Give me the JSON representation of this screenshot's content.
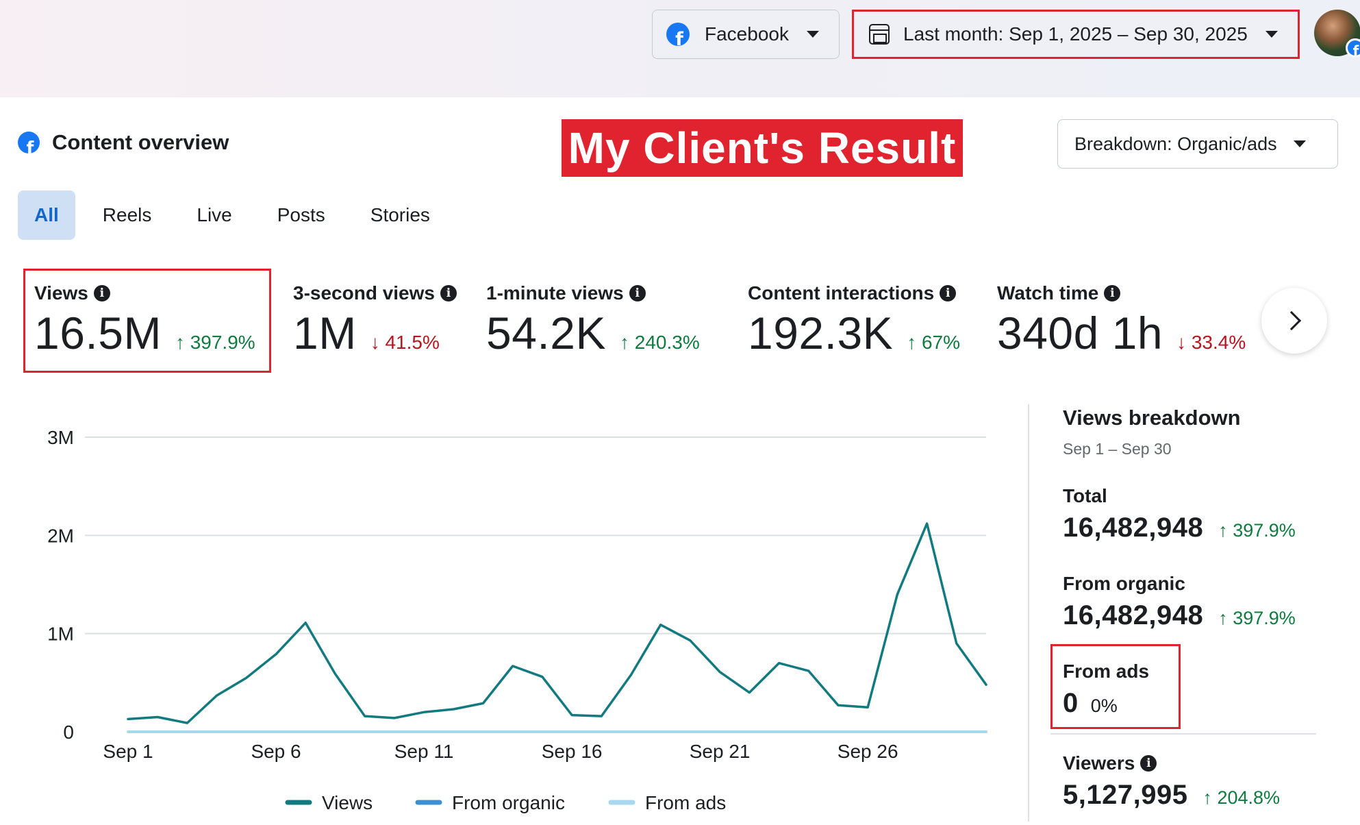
{
  "topbar": {
    "platform_label": "Facebook",
    "date_range_label": "Last month: Sep 1, 2025 – Sep 30, 2025"
  },
  "header": {
    "section_title": "Content overview",
    "banner_text": "My Client's Result",
    "breakdown_label": "Breakdown: Organic/ads"
  },
  "tabs": [
    {
      "label": "All",
      "active": true
    },
    {
      "label": "Reels",
      "active": false
    },
    {
      "label": "Live",
      "active": false
    },
    {
      "label": "Posts",
      "active": false
    },
    {
      "label": "Stories",
      "active": false
    }
  ],
  "metrics": [
    {
      "label": "Views",
      "value": "16.5M",
      "change": "397.9%",
      "direction": "up"
    },
    {
      "label": "3-second views",
      "value": "1M",
      "change": "41.5%",
      "direction": "down"
    },
    {
      "label": "1-minute views",
      "value": "54.2K",
      "change": "240.3%",
      "direction": "up"
    },
    {
      "label": "Content interactions",
      "value": "192.3K",
      "change": "67%",
      "direction": "up"
    },
    {
      "label": "Watch time",
      "value": "340d 1h",
      "change": "33.4%",
      "direction": "down"
    }
  ],
  "colors": {
    "up": "#0f7b3f",
    "down": "#b8151e",
    "views_line": "#137a7f",
    "organic_line": "#3d8fd1",
    "ads_line": "#a8d8f0",
    "highlight": "#e0232e",
    "facebook_blue": "#1877f2"
  },
  "chart_data": {
    "type": "line",
    "x": [
      "Sep 1",
      "Sep 2",
      "Sep 3",
      "Sep 4",
      "Sep 5",
      "Sep 6",
      "Sep 7",
      "Sep 8",
      "Sep 9",
      "Sep 10",
      "Sep 11",
      "Sep 12",
      "Sep 13",
      "Sep 14",
      "Sep 15",
      "Sep 16",
      "Sep 17",
      "Sep 18",
      "Sep 19",
      "Sep 20",
      "Sep 21",
      "Sep 22",
      "Sep 23",
      "Sep 24",
      "Sep 25",
      "Sep 26",
      "Sep 27",
      "Sep 28",
      "Sep 29",
      "Sep 30"
    ],
    "x_tick_labels": [
      "Sep 1",
      "Sep 6",
      "Sep 11",
      "Sep 16",
      "Sep 21",
      "Sep 26"
    ],
    "y_tick_labels": [
      "0",
      "1M",
      "2M",
      "3M"
    ],
    "ylim": [
      0,
      3000000
    ],
    "grid": true,
    "legend_position": "bottom",
    "series": [
      {
        "name": "Views",
        "values": [
          130000,
          150000,
          90000,
          370000,
          550000,
          790000,
          1110000,
          590000,
          160000,
          140000,
          200000,
          230000,
          290000,
          670000,
          560000,
          170000,
          160000,
          580000,
          1090000,
          930000,
          610000,
          400000,
          700000,
          620000,
          270000,
          250000,
          1400000,
          2120000,
          900000,
          480000
        ]
      },
      {
        "name": "From organic",
        "values": [
          130000,
          150000,
          90000,
          370000,
          550000,
          790000,
          1110000,
          590000,
          160000,
          140000,
          200000,
          230000,
          290000,
          670000,
          560000,
          170000,
          160000,
          580000,
          1090000,
          930000,
          610000,
          400000,
          700000,
          620000,
          270000,
          250000,
          1400000,
          2120000,
          900000,
          480000
        ]
      },
      {
        "name": "From ads",
        "values": [
          0,
          0,
          0,
          0,
          0,
          0,
          0,
          0,
          0,
          0,
          0,
          0,
          0,
          0,
          0,
          0,
          0,
          0,
          0,
          0,
          0,
          0,
          0,
          0,
          0,
          0,
          0,
          0,
          0,
          0
        ]
      }
    ]
  },
  "breakdown": {
    "title": "Views breakdown",
    "subtitle": "Sep 1 – Sep 30",
    "total_label": "Total",
    "total_value": "16,482,948",
    "total_change": "397.9%",
    "organic_label": "From organic",
    "organic_value": "16,482,948",
    "organic_change": "397.9%",
    "ads_label": "From ads",
    "ads_value": "0",
    "ads_change": "0%",
    "viewers_label": "Viewers",
    "viewers_value": "5,127,995",
    "viewers_change": "204.8%"
  }
}
